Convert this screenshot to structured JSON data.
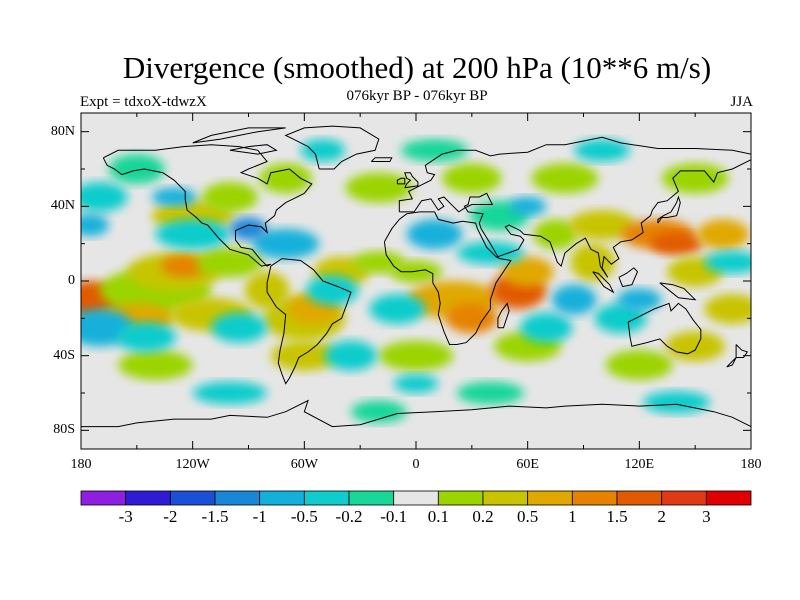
{
  "title": "Divergence (smoothed) at 200 hPa (10**6 m/s)",
  "subtitle": "076kyr BP - 076kyr BP",
  "experiment": "Expt = tdxoX-tdwzX",
  "season": "JJA",
  "lat_ticks": [
    "80N",
    "40N",
    "0",
    "40S",
    "80S"
  ],
  "lon_ticks": [
    "180",
    "120W",
    "60W",
    "0",
    "60E",
    "120E",
    "180"
  ],
  "colorbar": {
    "labels": [
      "-3",
      "-2",
      "-1.5",
      "-1",
      "-0.5",
      "-0.2",
      "-0.1",
      "0.1",
      "0.2",
      "0.5",
      "1",
      "1.5",
      "2",
      "3"
    ],
    "colors": [
      "#8f1fe0",
      "#2f1ad6",
      "#1a50d6",
      "#1a86d8",
      "#12b0db",
      "#10cccc",
      "#19d699",
      "#e6e6e6",
      "#9bd400",
      "#c8c400",
      "#e0a800",
      "#e68200",
      "#e25a00",
      "#e03a14",
      "#e00000"
    ]
  }
}
